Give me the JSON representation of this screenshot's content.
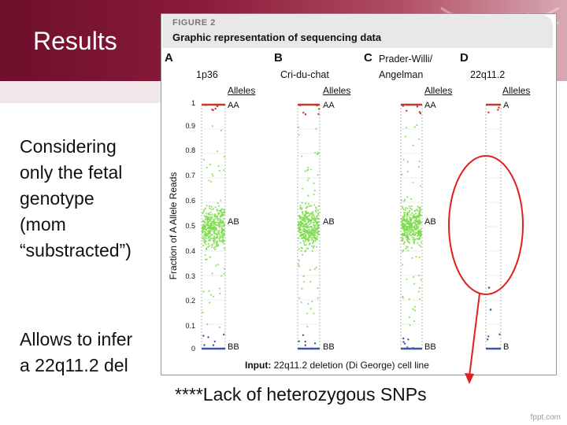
{
  "slide": {
    "title": "Results",
    "left_text": [
      "Considering",
      "only the fetal",
      "genotype",
      "(mom",
      "“substracted”)"
    ],
    "left_text_2": [
      "Allows to infer",
      "a 22q11.2 del"
    ],
    "caption": "****Lack of heterozygous SNPs",
    "watermark": "fppt.com"
  },
  "figure": {
    "label": "FIGURE 2",
    "title": "Graphic representation of sequencing data",
    "ylabel": "Fraction of A Allele Reads",
    "yticks": [
      "1",
      "0.9",
      "0.8",
      "0.7",
      "0.6",
      "0.5",
      "0.4",
      "0.3",
      "0.2",
      "0.1",
      "0"
    ],
    "alleles_header": "Alleles",
    "input_prefix": "Input:",
    "input_text": " 22q11.2 deletion (Di George) cell line",
    "panels": [
      {
        "letter": "A",
        "name": "1p36",
        "labels": [
          "AA",
          "AB",
          "BB"
        ]
      },
      {
        "letter": "B",
        "name": "Cri-du-chat",
        "labels": [
          "AA",
          "AB",
          "BB"
        ]
      },
      {
        "letter": "C",
        "name": "Prader-Willi/",
        "name2": "Angelman",
        "labels": [
          "AA",
          "AB",
          "BB"
        ]
      },
      {
        "letter": "D",
        "name": "22q11.2",
        "labels": [
          "A",
          "",
          "B"
        ]
      }
    ],
    "colors": {
      "aa": "#c0392b",
      "ab": "#7ddc4a",
      "bb": "#3b57a6",
      "highlight": "#e02020"
    }
  },
  "chart_data": {
    "type": "scatter",
    "ylabel": "Fraction of A Allele Reads",
    "ylim": [
      0,
      1
    ],
    "panels": [
      {
        "name": "1p36",
        "aa": 1.0,
        "ab_center": 0.5,
        "bb": 0.0,
        "heterozygous": true
      },
      {
        "name": "Cri-du-chat",
        "aa": 1.0,
        "ab_center": 0.5,
        "bb": 0.0,
        "heterozygous": true
      },
      {
        "name": "Prader-Willi/ Angelman",
        "aa": 1.0,
        "ab_center": 0.5,
        "bb": 0.0,
        "heterozygous": true
      },
      {
        "name": "22q11.2",
        "aa": 1.0,
        "ab_center": null,
        "bb": 0.0,
        "heterozygous": false
      }
    ]
  }
}
